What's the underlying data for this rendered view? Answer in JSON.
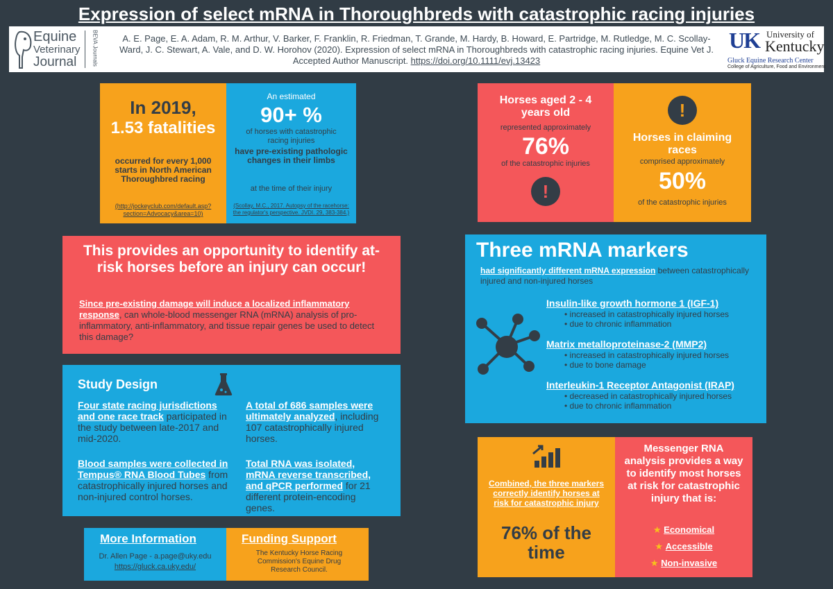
{
  "title": "Expression of select mRNA in Thoroughbreds with catastrophic racing injuries",
  "header": {
    "journal_logo": {
      "line1": "Equine",
      "line2": "Veterinary",
      "line3": "Journal",
      "side": "BEVA Journals"
    },
    "citation_text": "A. E. Page, E. A. Adam, R. M. Arthur, V. Barker, F. Franklin, R. Friedman, T. Grande, M. Hardy, B. Howard, E. Partridge, M. Rutledge, M. C. Scollay-Ward, J. C. Stewart, A. Vale, and D. W. Horohov (2020). Expression of select mRNA in Thoroughbreds with catastrophic racing injuries. Equine Vet J. Accepted Author Manuscript.",
    "citation_link": "https://doi.org/10.1111/evj.13423",
    "uk_logo": {
      "mark": "UK",
      "line1": "University of",
      "line2": "Kentucky",
      "center": "Gluck Equine Research Center",
      "college": "College of Agriculture, Food and Environment"
    }
  },
  "stat_2019": {
    "heading": "In 2019,",
    "figure": "1.53 fatalities",
    "text": "occurred for every 1,000 starts in North American Thoroughbred racing",
    "source": "(http://jockeyclub.com/default.asp?section=Advocacy&area=10)"
  },
  "stat_90": {
    "intro": "An estimated",
    "figure": "90+ %",
    "text1": "of horses with catastrophic racing injuries",
    "text2": "have pre-existing pathologic changes in their limbs",
    "text3": "at the time of their injury",
    "source": "(Scollay, M.C., 2017. Autopsy of the racehorse: the regulator's perspective. JVDI. 29, 383-384.)"
  },
  "stat_age": {
    "heading": "Horses aged 2 - 4 years old",
    "text1": "represented approximately",
    "figure": "76%",
    "text2": "of the catastrophic injuries"
  },
  "stat_claiming": {
    "heading": "Horses in claiming races",
    "text1": "comprised approximately",
    "figure": "50%",
    "text2": "of the catastrophic injuries"
  },
  "opportunity": {
    "heading": "This provides an opportunity to identify at-risk horses before an injury can occur!",
    "link_text": "Since pre-existing damage will induce a localized inflammatory response",
    "body": ", can whole-blood messenger RNA (mRNA) analysis of pro-inflammatory, anti-inflammatory, and tissue repair genes be used to detect this damage?"
  },
  "markers": {
    "heading": "Three mRNA markers",
    "sub_link": "had significantly different mRNA expression",
    "sub_rest": " between catastrophically injured and non-injured horses",
    "items": [
      {
        "name": "Insulin-like growth hormone 1 (IGF-1)",
        "bullets": [
          "increased in catastrophically injured horses",
          "due to chronic inflammation"
        ]
      },
      {
        "name": "Matrix metalloproteinase-2 (MMP2)",
        "bullets": [
          "increased in catastrophically injured horses",
          "due to bone damage"
        ]
      },
      {
        "name": "Interleukin-1 Receptor Antagonist (IRAP)",
        "bullets": [
          "decreased in catastrophically injured horses",
          "due to chronic inflammation"
        ]
      }
    ]
  },
  "study": {
    "heading": "Study Design",
    "p1_link": "Four state racing jurisdictions and one race track",
    "p1_rest": " participated in the study between late-2017 and mid-2020.",
    "p2_link": "Blood samples were collected in Tempus® RNA Blood Tubes",
    "p2_rest": " from catastrophically injured horses and non-injured control horses.",
    "p3_link": "A total of 686 samples were ultimately analyzed",
    "p3_rest": ", including 107 catastrophically injured horses.",
    "p4_link": "Total RNA was isolated, mRNA reverse transcribed, and qPCR performed",
    "p4_rest": " for 21 different protein-encoding genes."
  },
  "combined": {
    "text": "Combined, the three markers correctly identify horses at risk for catastrophic injury",
    "figure": "76% of the time"
  },
  "analysis": {
    "text": "Messenger RNA analysis provides a way to identify most horses at risk for catastrophic injury that is:",
    "items": [
      "Economical",
      "Accessible",
      "Non-invasive"
    ]
  },
  "more_info": {
    "heading": "More Information",
    "contact": "Dr. Allen Page - a.page@uky.edu",
    "link": "https://gluck.ca.uky.edu/"
  },
  "funding": {
    "heading": "Funding Support",
    "text": "The Kentucky Horse Racing Commission's Equine Drug Research Council."
  },
  "colors": {
    "background": "#313c45",
    "orange": "#f7a21c",
    "blue": "#1ba8de",
    "red": "#f4575a",
    "dark": "#333d46",
    "kentucky_blue": "#1f3f94"
  }
}
